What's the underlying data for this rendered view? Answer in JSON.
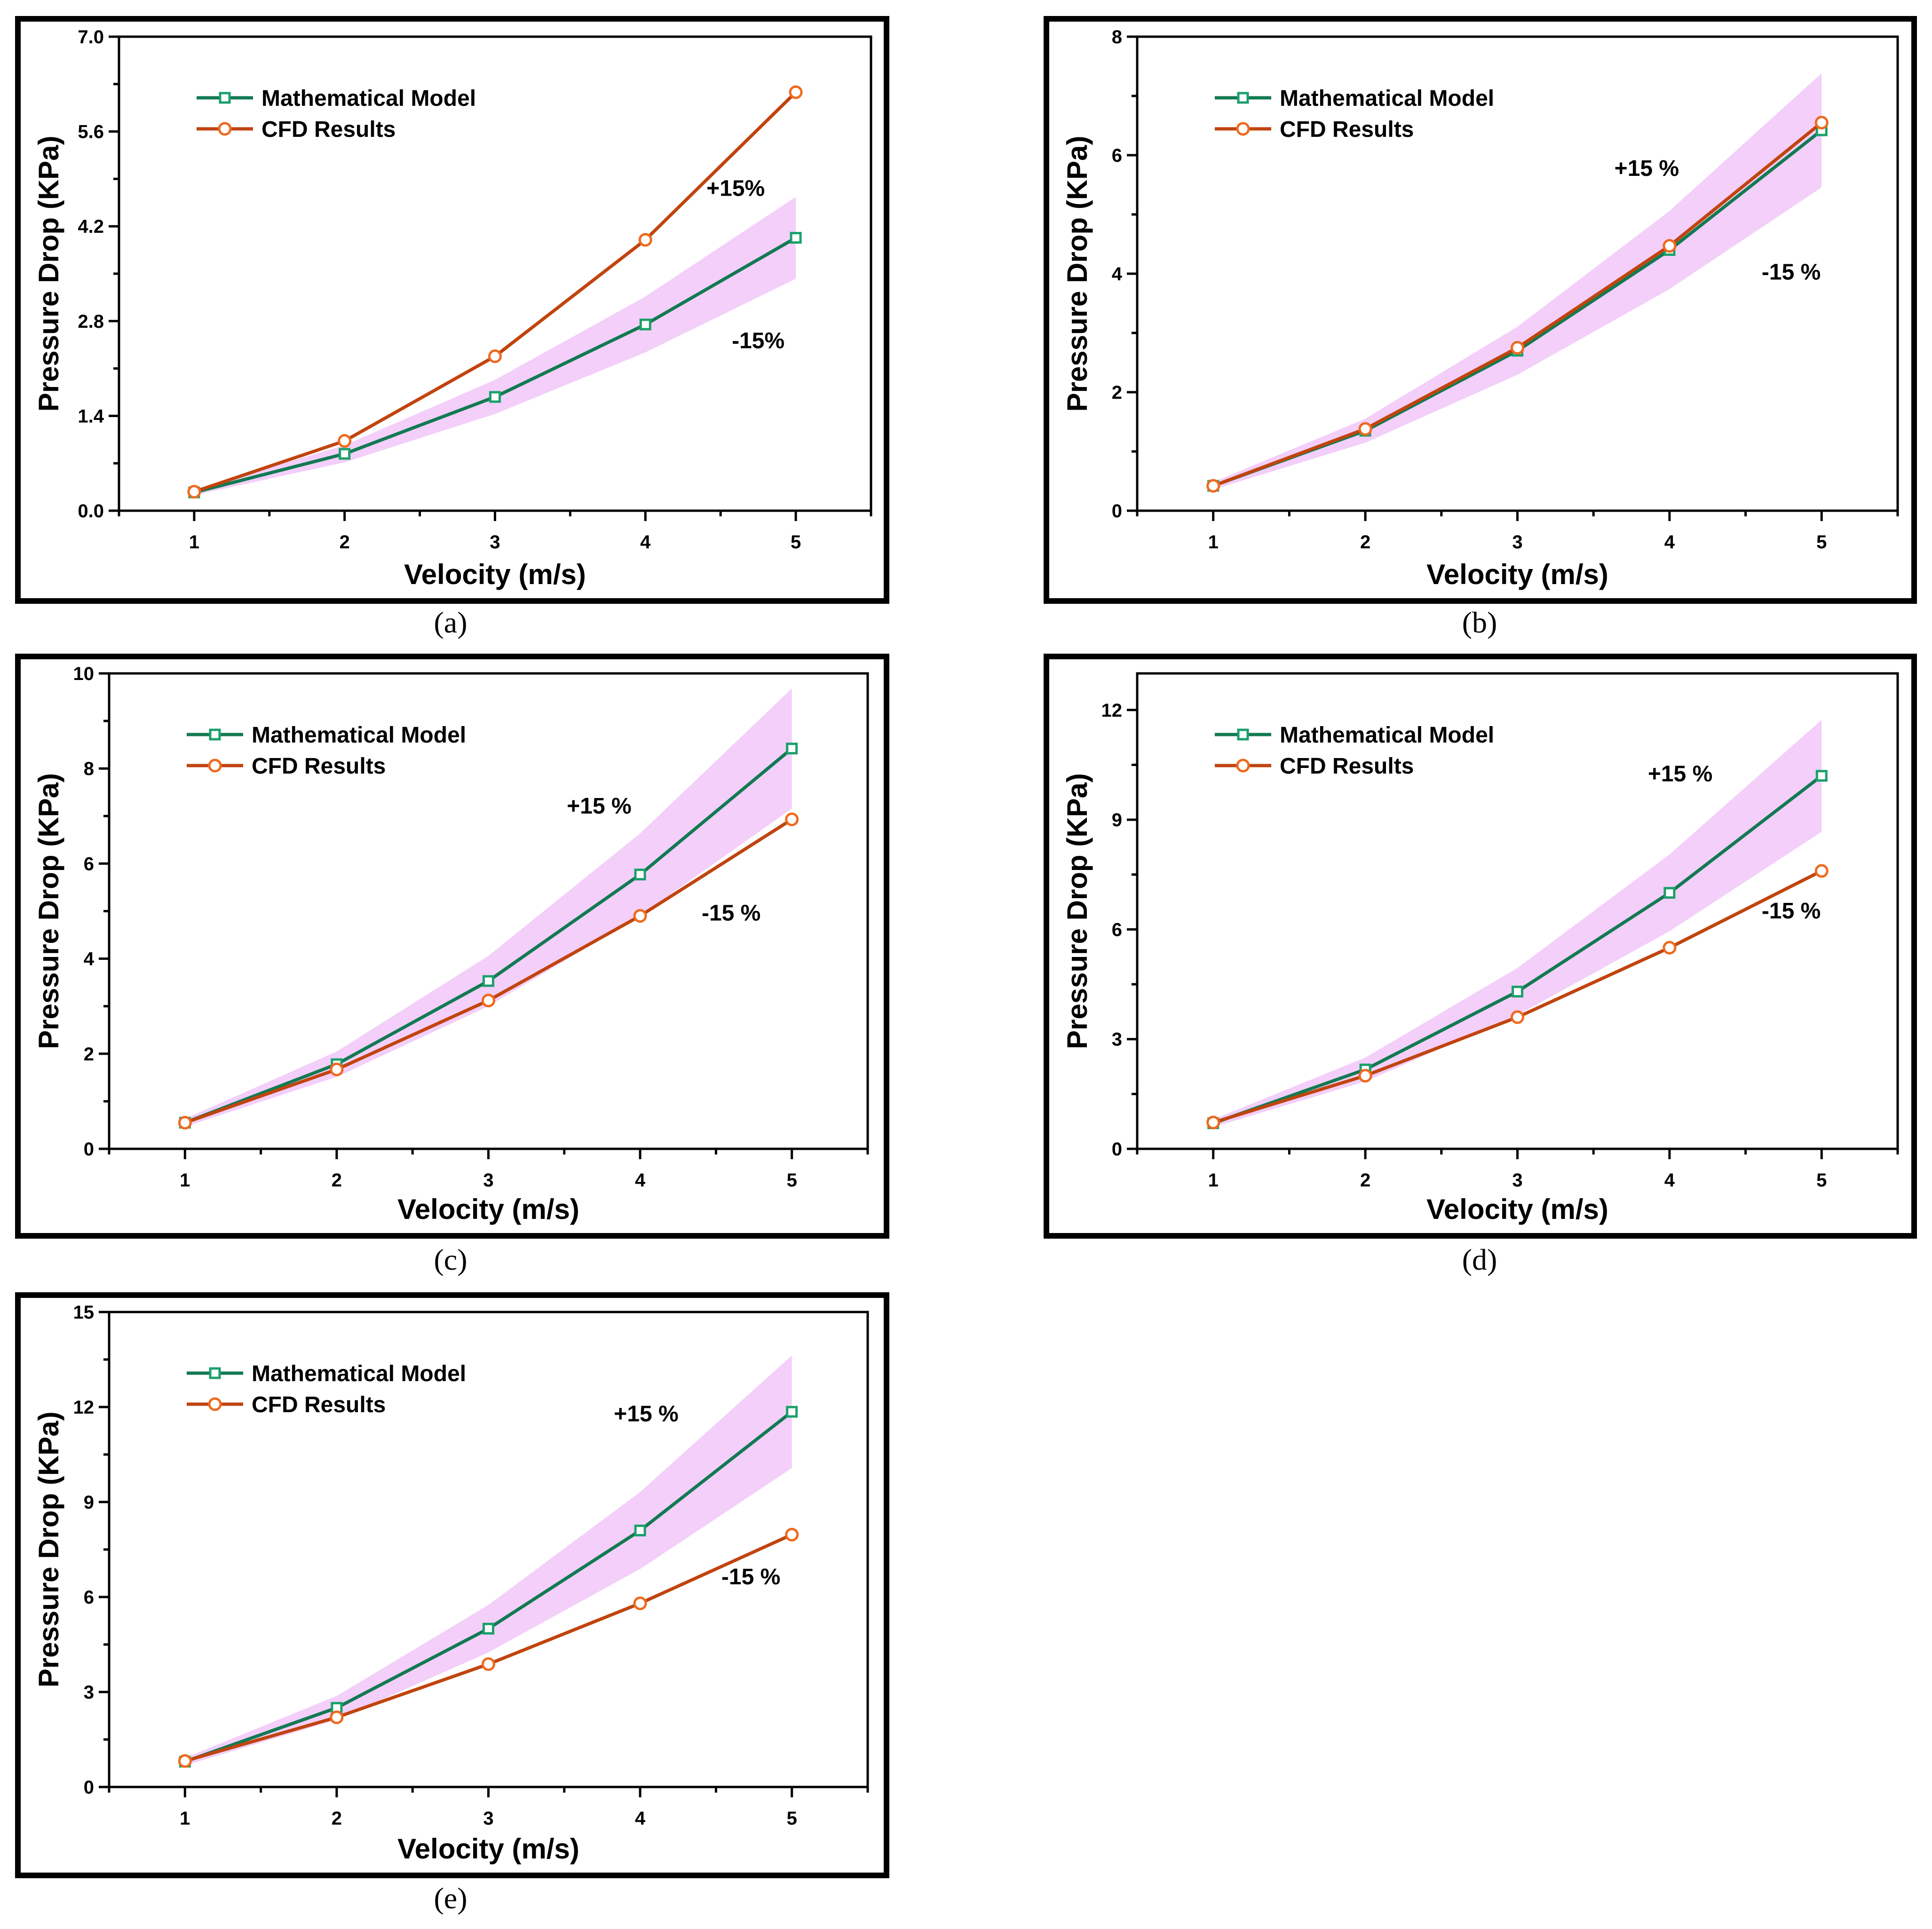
{
  "colors": {
    "model": "#127a52",
    "model_marker": "#1aa06a",
    "cfd": "#c1440e",
    "cfd_marker": "#ee6a1f",
    "band": "#e9a8f5",
    "frame": "#000000"
  },
  "chart_data": [
    {
      "type": "line",
      "panel_label": "(a)",
      "xlabel": "Velocity (m/s)",
      "ylabel": "Pressure Drop (KPa)",
      "x": [
        1,
        2,
        3,
        4,
        5
      ],
      "xlim": [
        0.5,
        5.5
      ],
      "ylim": [
        0,
        7
      ],
      "yticks": [
        0,
        1.4,
        2.8,
        4.2,
        5.6,
        7.0
      ],
      "ytick_labels": [
        "0.0",
        "1.4",
        "2.8",
        "4.2",
        "5.6",
        "7.0"
      ],
      "series": [
        {
          "name": "Mathematical Model",
          "values": [
            0.27,
            0.84,
            1.68,
            2.75,
            4.03
          ]
        },
        {
          "name": "CFD Results",
          "values": [
            0.28,
            1.03,
            2.28,
            4.0,
            6.18
          ]
        }
      ],
      "band_percent": 15,
      "annotations": [
        {
          "text": "+15%",
          "x": 4.6,
          "y": 4.65
        },
        {
          "text": "-15%",
          "x": 4.75,
          "y": 2.4
        }
      ]
    },
    {
      "type": "line",
      "panel_label": "(b)",
      "xlabel": "Velocity (m/s)",
      "ylabel": "Pressure Drop (KPa)",
      "x": [
        1,
        2,
        3,
        4,
        5
      ],
      "xlim": [
        0.5,
        5.5
      ],
      "ylim": [
        0,
        8
      ],
      "yticks": [
        0,
        2,
        4,
        6,
        8
      ],
      "ytick_labels": [
        "0",
        "2",
        "4",
        "6",
        "8"
      ],
      "series": [
        {
          "name": "Mathematical Model",
          "values": [
            0.42,
            1.35,
            2.7,
            4.4,
            6.42
          ]
        },
        {
          "name": "CFD Results",
          "values": [
            0.42,
            1.38,
            2.75,
            4.47,
            6.55
          ]
        }
      ],
      "band_percent": 15,
      "annotations": [
        {
          "text": "+15 %",
          "x": 3.85,
          "y": 5.65
        },
        {
          "text": "-15 %",
          "x": 4.8,
          "y": 3.9
        }
      ]
    },
    {
      "type": "line",
      "panel_label": "(c)",
      "xlabel": "Velocity (m/s)",
      "ylabel": "Pressure Drop (KPa)",
      "x": [
        1,
        2,
        3,
        4,
        5
      ],
      "xlim": [
        0.5,
        5.5
      ],
      "ylim": [
        0,
        10
      ],
      "yticks": [
        0,
        2,
        4,
        6,
        8,
        10
      ],
      "ytick_labels": [
        "0",
        "2",
        "4",
        "6",
        "8",
        "10"
      ],
      "series": [
        {
          "name": "Mathematical Model",
          "values": [
            0.55,
            1.78,
            3.53,
            5.77,
            8.42
          ]
        },
        {
          "name": "CFD Results",
          "values": [
            0.55,
            1.67,
            3.12,
            4.9,
            6.93
          ]
        }
      ],
      "band_percent": 15,
      "annotations": [
        {
          "text": "+15 %",
          "x": 3.73,
          "y": 7.05
        },
        {
          "text": "-15 %",
          "x": 4.6,
          "y": 4.8
        }
      ]
    },
    {
      "type": "line",
      "panel_label": "(d)",
      "xlabel": "Velocity (m/s)",
      "ylabel": "Pressure Drop (KPa)",
      "x": [
        1,
        2,
        3,
        4,
        5
      ],
      "xlim": [
        0.5,
        5.5
      ],
      "ylim": [
        0,
        13
      ],
      "yticks": [
        0,
        3,
        6,
        9,
        12
      ],
      "ytick_labels": [
        "0",
        "3",
        "6",
        "9",
        "12"
      ],
      "series": [
        {
          "name": "Mathematical Model",
          "values": [
            0.7,
            2.17,
            4.3,
            7.0,
            10.2
          ]
        },
        {
          "name": "CFD Results",
          "values": [
            0.72,
            2.0,
            3.6,
            5.5,
            7.6
          ]
        }
      ],
      "band_percent": 15,
      "annotations": [
        {
          "text": "+15 %",
          "x": 4.07,
          "y": 10.05
        },
        {
          "text": "-15 %",
          "x": 4.8,
          "y": 6.3
        }
      ]
    },
    {
      "type": "line",
      "panel_label": "(e)",
      "xlabel": "Velocity (m/s)",
      "ylabel": "Pressure Drop (KPa)",
      "x": [
        1,
        2,
        3,
        4,
        5
      ],
      "xlim": [
        0.5,
        5.5
      ],
      "ylim": [
        0,
        15
      ],
      "yticks": [
        0,
        3,
        6,
        9,
        12,
        15
      ],
      "ytick_labels": [
        "0",
        "3",
        "6",
        "9",
        "12",
        "15"
      ],
      "series": [
        {
          "name": "Mathematical Model",
          "values": [
            0.8,
            2.5,
            5.0,
            8.1,
            11.85
          ]
        },
        {
          "name": "CFD Results",
          "values": [
            0.82,
            2.2,
            3.88,
            5.8,
            7.97
          ]
        }
      ],
      "band_percent": 15,
      "annotations": [
        {
          "text": "+15 %",
          "x": 4.04,
          "y": 11.55
        },
        {
          "text": "-15 %",
          "x": 4.73,
          "y": 6.4
        }
      ]
    }
  ]
}
